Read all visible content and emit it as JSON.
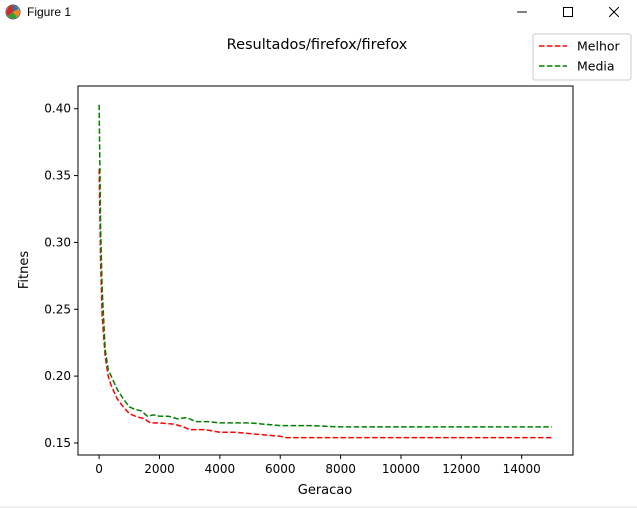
{
  "window": {
    "title": "Figure 1",
    "icons": {
      "app": "matplotlib-figure-icon",
      "minimize": "minimize-icon",
      "maximize": "maximize-icon",
      "close": "close-icon"
    }
  },
  "chart_data": {
    "type": "line",
    "title": "Resultados/firefox/firefox",
    "xlabel": "Geracao",
    "ylabel": "Fitnes",
    "xlim": [
      -700,
      15700
    ],
    "ylim": [
      0.141,
      0.417
    ],
    "xticks": [
      0,
      2000,
      4000,
      6000,
      8000,
      10000,
      12000,
      14000
    ],
    "xtick_labels": [
      "0",
      "2000",
      "4000",
      "6000",
      "8000",
      "10000",
      "12000",
      "14000"
    ],
    "yticks": [
      0.15,
      0.2,
      0.25,
      0.3,
      0.35,
      0.4
    ],
    "ytick_labels": [
      "0.15",
      "0.20",
      "0.25",
      "0.30",
      "0.35",
      "0.40"
    ],
    "grid": false,
    "legend_position": "top-right, outside plot area",
    "series": [
      {
        "name": "Melhor",
        "color": "#ff0000",
        "style": "dashed",
        "x": [
          0,
          50,
          100,
          200,
          300,
          400,
          500,
          600,
          800,
          1000,
          1200,
          1500,
          1700,
          2000,
          2500,
          2800,
          3000,
          3500,
          4000,
          4500,
          5000,
          5500,
          6000,
          6200,
          7000,
          8000,
          9000,
          10000,
          11000,
          12000,
          13000,
          14000,
          15000
        ],
        "values": [
          0.355,
          0.285,
          0.245,
          0.215,
          0.2,
          0.193,
          0.188,
          0.183,
          0.177,
          0.172,
          0.17,
          0.168,
          0.165,
          0.165,
          0.164,
          0.162,
          0.16,
          0.16,
          0.158,
          0.158,
          0.157,
          0.156,
          0.155,
          0.154,
          0.154,
          0.154,
          0.154,
          0.154,
          0.154,
          0.154,
          0.154,
          0.154,
          0.154
        ]
      },
      {
        "name": "Media",
        "color": "#008000",
        "style": "dashed",
        "x": [
          0,
          50,
          100,
          200,
          300,
          400,
          600,
          800,
          1000,
          1200,
          1400,
          1600,
          1800,
          2000,
          2300,
          2600,
          2900,
          3200,
          3600,
          4000,
          4500,
          5000,
          5500,
          6000,
          6500,
          7000,
          8000,
          9000,
          10000,
          11000,
          12000,
          13000,
          14000,
          15000
        ],
        "values": [
          0.403,
          0.31,
          0.265,
          0.22,
          0.205,
          0.2,
          0.19,
          0.183,
          0.177,
          0.175,
          0.174,
          0.17,
          0.171,
          0.17,
          0.17,
          0.168,
          0.169,
          0.166,
          0.166,
          0.165,
          0.165,
          0.165,
          0.164,
          0.163,
          0.163,
          0.163,
          0.162,
          0.162,
          0.162,
          0.162,
          0.162,
          0.162,
          0.162,
          0.162
        ]
      }
    ]
  }
}
